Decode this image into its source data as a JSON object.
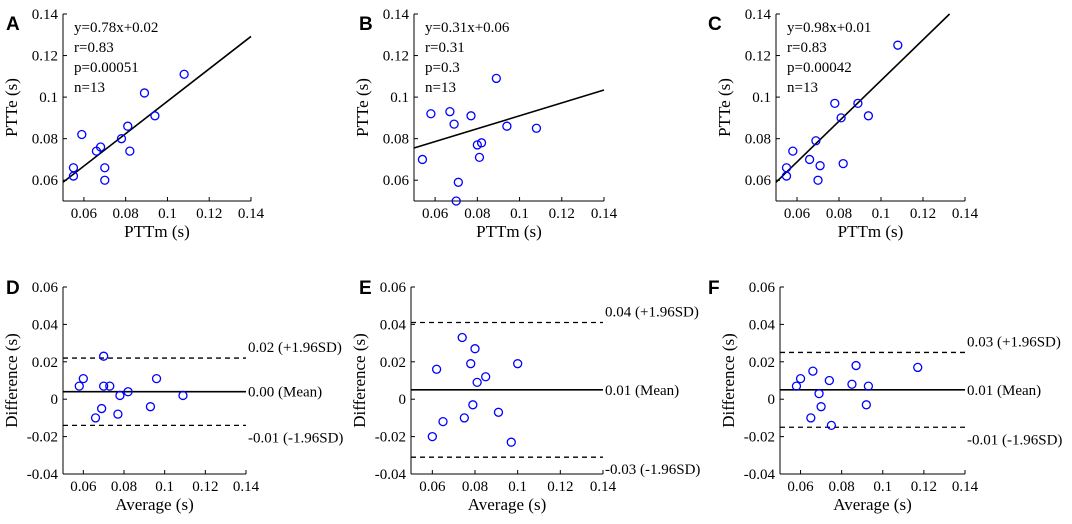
{
  "figure_colors": {
    "marker": "#0000ff",
    "line": "#000000",
    "axis": "#000000"
  },
  "chart_data": [
    {
      "panel": "A",
      "type": "scatter",
      "xlabel": "PTTm (s)",
      "ylabel": "PTTe (s)",
      "xlim": [
        0.05,
        0.14
      ],
      "ylim": [
        0.05,
        0.14
      ],
      "xticks": [
        0.06,
        0.08,
        0.1,
        0.12,
        0.14
      ],
      "xtick_labels": [
        "0.06",
        "0.08",
        "0.1",
        "0.12",
        "0.14"
      ],
      "yticks": [
        0.06,
        0.08,
        0.1,
        0.12,
        0.14
      ],
      "ytick_labels": [
        "0.06",
        "0.08",
        "0.1",
        "0.12",
        "0.14"
      ],
      "x": [
        0.055,
        0.055,
        0.059,
        0.066,
        0.068,
        0.07,
        0.07,
        0.078,
        0.081,
        0.082,
        0.089,
        0.094,
        0.108
      ],
      "y": [
        0.066,
        0.062,
        0.082,
        0.074,
        0.076,
        0.06,
        0.066,
        0.08,
        0.086,
        0.074,
        0.102,
        0.091,
        0.111
      ],
      "fit": {
        "slope": 0.78,
        "intercept": 0.02
      },
      "stats": [
        "y=0.78x+0.02",
        "r=0.83",
        "p=0.00051",
        "n=13"
      ]
    },
    {
      "panel": "B",
      "type": "scatter",
      "xlabel": "PTTm (s)",
      "ylabel": "PTTe (s)",
      "xlim": [
        0.05,
        0.14
      ],
      "ylim": [
        0.05,
        0.14
      ],
      "xticks": [
        0.06,
        0.08,
        0.1,
        0.12,
        0.14
      ],
      "xtick_labels": [
        "0.06",
        "0.08",
        "0.1",
        "0.12",
        "0.14"
      ],
      "yticks": [
        0.06,
        0.08,
        0.1,
        0.12,
        0.14
      ],
      "ytick_labels": [
        "0.06",
        "0.08",
        "0.1",
        "0.12",
        "0.14"
      ],
      "x": [
        0.054,
        0.058,
        0.067,
        0.069,
        0.071,
        0.07,
        0.077,
        0.08,
        0.081,
        0.089,
        0.094,
        0.108,
        0.082
      ],
      "y": [
        0.07,
        0.092,
        0.093,
        0.087,
        0.059,
        0.05,
        0.091,
        0.077,
        0.071,
        0.109,
        0.086,
        0.085,
        0.078
      ],
      "fit": {
        "slope": 0.31,
        "intercept": 0.06
      },
      "stats": [
        "y=0.31x+0.06",
        "r=0.31",
        "p=0.3",
        "n=13"
      ]
    },
    {
      "panel": "C",
      "type": "scatter",
      "xlabel": "PTTm (s)",
      "ylabel": "PTTe (s)",
      "xlim": [
        0.05,
        0.14
      ],
      "ylim": [
        0.05,
        0.14
      ],
      "xticks": [
        0.06,
        0.08,
        0.1,
        0.12,
        0.14
      ],
      "xtick_labels": [
        "0.06",
        "0.08",
        "0.1",
        "0.12",
        "0.14"
      ],
      "yticks": [
        0.06,
        0.08,
        0.1,
        0.12,
        0.14
      ],
      "ytick_labels": [
        "0.06",
        "0.08",
        "0.1",
        "0.12",
        "0.14"
      ],
      "x": [
        0.055,
        0.055,
        0.058,
        0.066,
        0.069,
        0.07,
        0.071,
        0.078,
        0.081,
        0.082,
        0.089,
        0.094,
        0.108
      ],
      "y": [
        0.066,
        0.062,
        0.074,
        0.07,
        0.079,
        0.06,
        0.067,
        0.097,
        0.09,
        0.068,
        0.097,
        0.091,
        0.125
      ],
      "fit": {
        "slope": 0.98,
        "intercept": 0.01
      },
      "stats": [
        "y=0.98x+0.01",
        "r=0.83",
        "p=0.00042",
        "n=13"
      ]
    },
    {
      "panel": "D",
      "type": "scatter",
      "xlabel": "Average (s)",
      "ylabel": "Difference (s)",
      "xlim": [
        0.05,
        0.14
      ],
      "ylim": [
        -0.04,
        0.06
      ],
      "xticks": [
        0.06,
        0.08,
        0.1,
        0.12,
        0.14
      ],
      "xtick_labels": [
        "0.06",
        "0.08",
        "0.1",
        "0.12",
        "0.14"
      ],
      "yticks": [
        -0.04,
        -0.02,
        0,
        0.02,
        0.04,
        0.06
      ],
      "ytick_labels": [
        "-0.04",
        "-0.02",
        "0",
        "0.02",
        "0.04",
        "0.06"
      ],
      "x": [
        0.058,
        0.06,
        0.066,
        0.069,
        0.07,
        0.07,
        0.073,
        0.077,
        0.078,
        0.082,
        0.093,
        0.096,
        0.109
      ],
      "y": [
        0.007,
        0.011,
        -0.01,
        -0.005,
        0.007,
        0.023,
        0.007,
        -0.008,
        0.002,
        0.004,
        -0.004,
        0.011,
        0.002
      ],
      "hlines": [
        {
          "value": 0.022,
          "style": "dashed",
          "label": "0.02 (+1.96SD)"
        },
        {
          "value": 0.004,
          "style": "solid",
          "label": "0.00 (Mean)"
        },
        {
          "value": -0.014,
          "style": "dashed",
          "label": "-0.01 (-1.96SD)"
        }
      ]
    },
    {
      "panel": "E",
      "type": "scatter",
      "xlabel": "Average (s)",
      "ylabel": "Difference (s)",
      "xlim": [
        0.05,
        0.14
      ],
      "ylim": [
        -0.04,
        0.06
      ],
      "xticks": [
        0.06,
        0.08,
        0.1,
        0.12,
        0.14
      ],
      "xtick_labels": [
        "0.06",
        "0.08",
        "0.1",
        "0.12",
        "0.14"
      ],
      "yticks": [
        -0.04,
        -0.02,
        0,
        0.02,
        0.04,
        0.06
      ],
      "ytick_labels": [
        "-0.04",
        "-0.02",
        "0",
        "0.02",
        "0.04",
        "0.06"
      ],
      "x": [
        0.06,
        0.062,
        0.065,
        0.074,
        0.075,
        0.078,
        0.079,
        0.08,
        0.081,
        0.085,
        0.091,
        0.097,
        0.1
      ],
      "y": [
        -0.02,
        0.016,
        -0.012,
        0.033,
        -0.01,
        0.019,
        -0.003,
        0.027,
        0.009,
        0.012,
        -0.007,
        -0.023,
        0.019
      ],
      "hlines": [
        {
          "value": 0.041,
          "style": "dashed",
          "label": "0.04 (+1.96SD)"
        },
        {
          "value": 0.005,
          "style": "solid",
          "label": "0.01 (Mean)"
        },
        {
          "value": -0.031,
          "style": "dashed",
          "label": "-0.03 (-1.96SD)"
        }
      ]
    },
    {
      "panel": "F",
      "type": "scatter",
      "xlabel": "Average (s)",
      "ylabel": "Difference (s)",
      "xlim": [
        0.05,
        0.14
      ],
      "ylim": [
        -0.04,
        0.06
      ],
      "xticks": [
        0.06,
        0.08,
        0.1,
        0.12,
        0.14
      ],
      "xtick_labels": [
        "0.06",
        "0.08",
        "0.1",
        "0.12",
        "0.14"
      ],
      "yticks": [
        -0.04,
        -0.02,
        0,
        0.02,
        0.04,
        0.06
      ],
      "ytick_labels": [
        "-0.04",
        "-0.02",
        "0",
        "0.02",
        "0.04",
        "0.06"
      ],
      "x": [
        0.058,
        0.06,
        0.065,
        0.066,
        0.069,
        0.07,
        0.074,
        0.075,
        0.085,
        0.087,
        0.092,
        0.093,
        0.117
      ],
      "y": [
        0.007,
        0.011,
        -0.01,
        0.015,
        0.003,
        -0.004,
        0.01,
        -0.014,
        0.008,
        0.018,
        -0.003,
        0.007,
        0.017
      ],
      "hlines": [
        {
          "value": 0.025,
          "style": "dashed",
          "label": "0.03 (+1.96SD)"
        },
        {
          "value": 0.005,
          "style": "solid",
          "label": "0.01 (Mean)"
        },
        {
          "value": -0.015,
          "style": "dashed",
          "label": "-0.01 (-1.96SD)"
        }
      ]
    }
  ]
}
